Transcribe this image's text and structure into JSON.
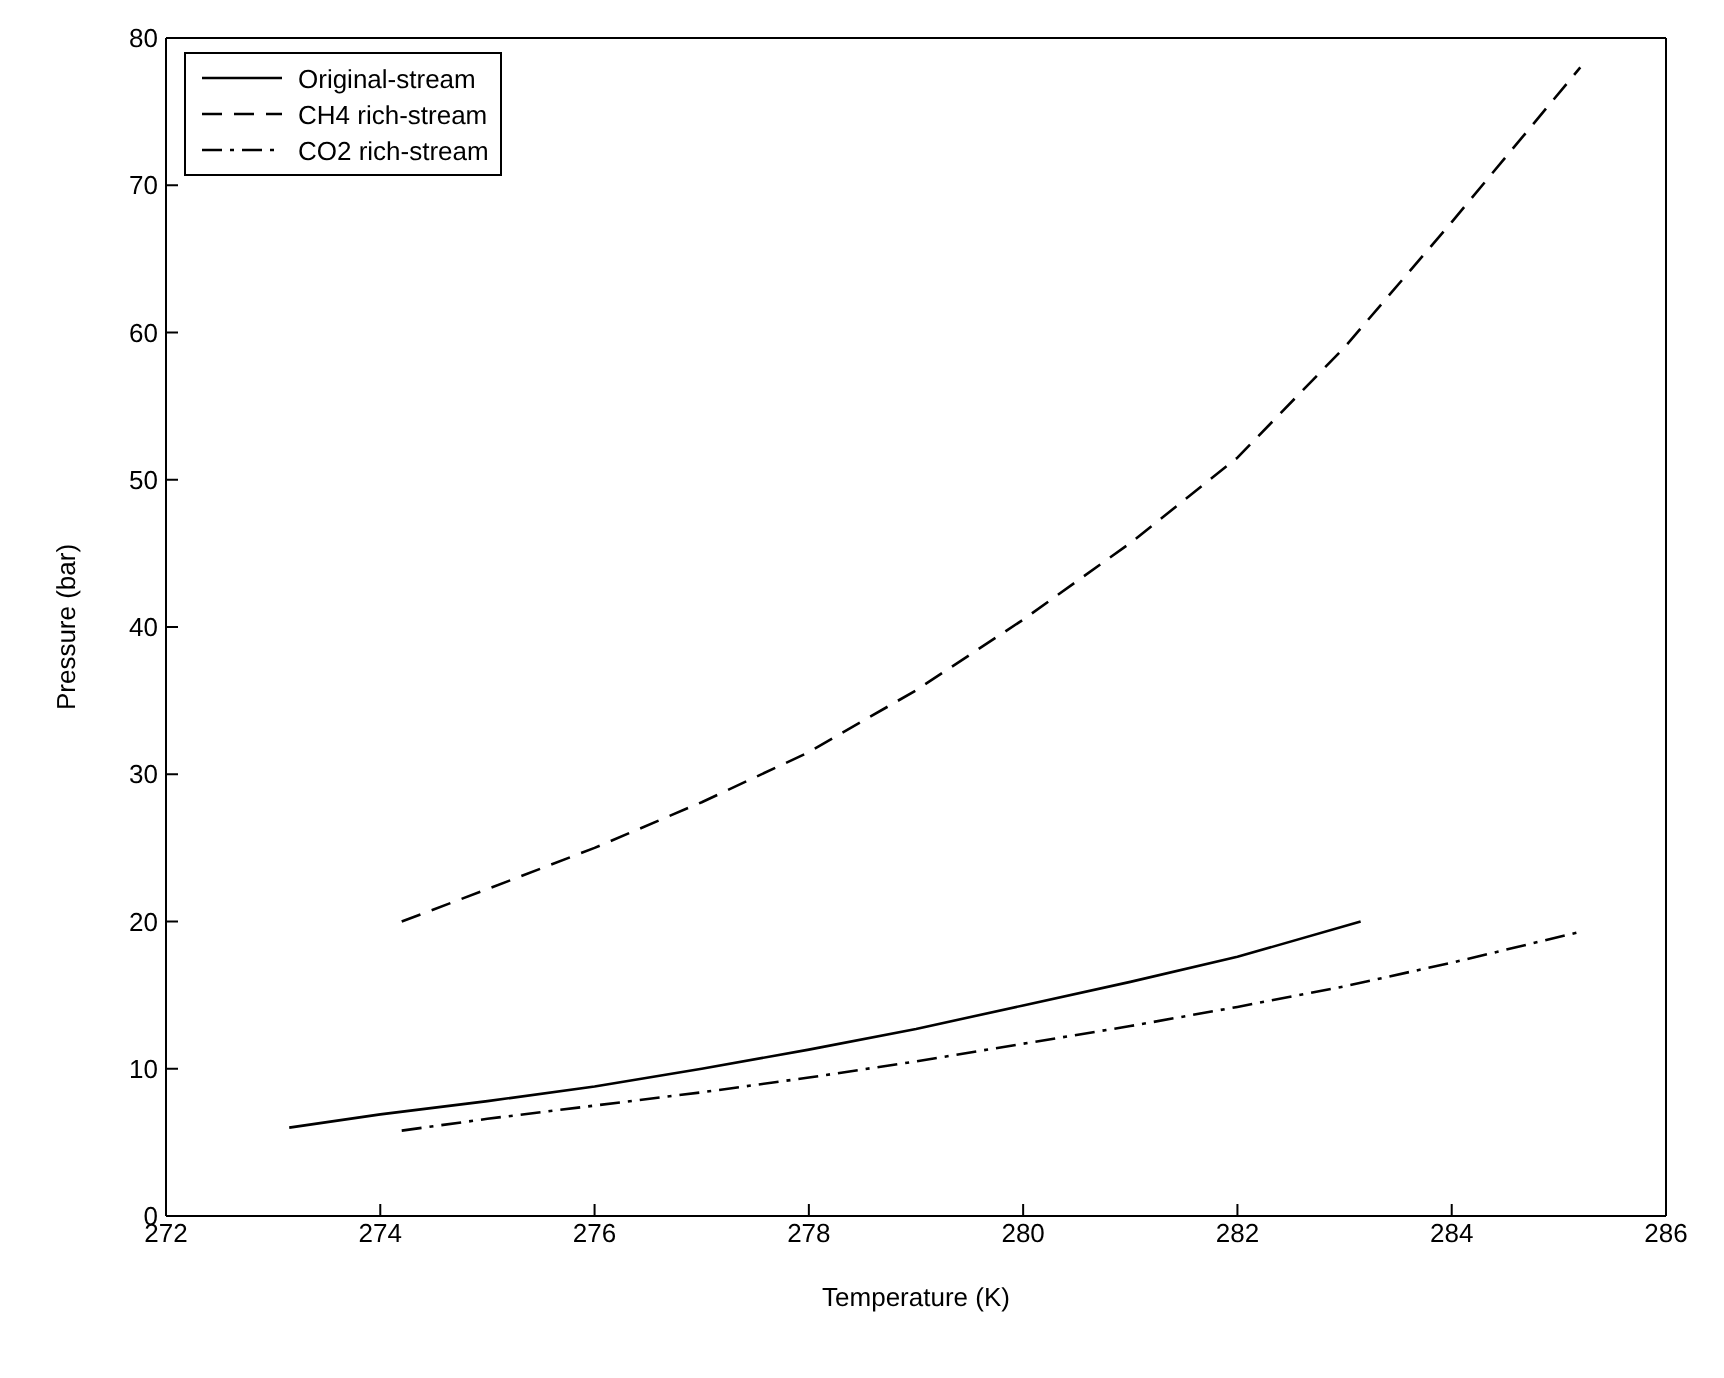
{
  "chart_data": {
    "type": "line",
    "xlabel": "Temperature (K)",
    "ylabel": "Pressure (bar)",
    "xlim": [
      272,
      286
    ],
    "xticks": [
      272,
      274,
      276,
      278,
      280,
      282,
      284,
      286
    ],
    "ylim": [
      0,
      80
    ],
    "yticks": [
      0,
      10,
      20,
      30,
      40,
      50,
      60,
      70,
      80
    ],
    "legend": "top left",
    "marker": "none",
    "series": [
      {
        "name": "Original-stream",
        "color": "#000000",
        "line_style": "solid",
        "x": [
          273.15,
          274,
          275,
          276,
          277,
          278,
          279,
          280,
          281,
          282,
          283.15
        ],
        "values": [
          6,
          6.9,
          7.8,
          8.8,
          10,
          11.3,
          12.7,
          14.3,
          15.9,
          17.6,
          20
        ]
      },
      {
        "name": "CH4 rich-stream",
        "color": "#000000",
        "line_style": "dashed",
        "x": [
          274.2,
          275,
          276,
          277,
          278,
          279,
          280,
          281,
          282,
          283,
          284,
          285.2
        ],
        "values": [
          20,
          22.2,
          25,
          28.1,
          31.5,
          35.7,
          40.5,
          45.7,
          51.5,
          59,
          67.5,
          78
        ]
      },
      {
        "name": "CO2 rich-stream",
        "color": "#000000",
        "line_style": "dashdot",
        "x": [
          274.2,
          275,
          276,
          277,
          278,
          279,
          280,
          281,
          282,
          283,
          284,
          285.2
        ],
        "values": [
          5.8,
          6.6,
          7.5,
          8.4,
          9.4,
          10.5,
          11.7,
          12.9,
          14.2,
          15.6,
          17.2,
          19.3
        ]
      }
    ]
  }
}
